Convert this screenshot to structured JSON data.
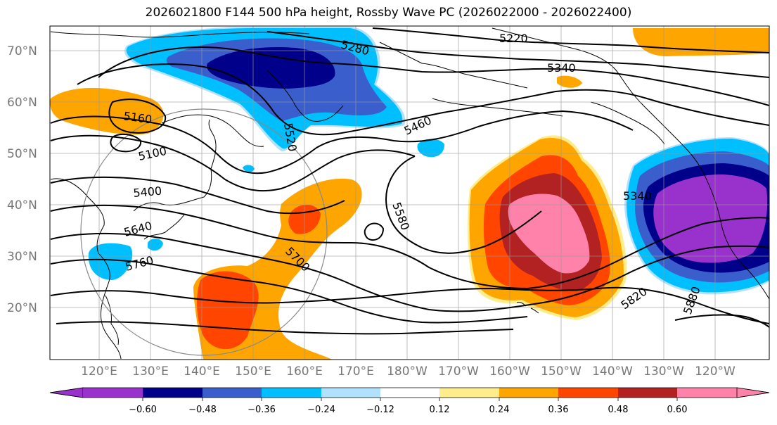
{
  "title": "2026021800 F144 500 hPa height, Rossby Wave PC (2026022000 - 2026022400)",
  "lat_labels": [
    "70°N",
    "60°N",
    "50°N",
    "40°N",
    "30°N",
    "20°N"
  ],
  "lon_labels": [
    "120°E",
    "130°E",
    "140°E",
    "150°E",
    "160°E",
    "170°E",
    "180°W",
    "170°W",
    "160°W",
    "150°W",
    "140°W",
    "130°W",
    "120°W"
  ],
  "contour_labels": [
    "5220",
    "5280",
    "5340",
    "5160",
    "5100",
    "5460",
    "5520",
    "5400",
    "5580",
    "5640",
    "5700",
    "5760",
    "5820",
    "5340",
    "5880"
  ],
  "colorbar": {
    "ticks": [
      "−0.60",
      "−0.48",
      "−0.36",
      "−0.24",
      "−0.12",
      "0.12",
      "0.24",
      "0.36",
      "0.48",
      "0.60"
    ],
    "colors": [
      "#9932cc",
      "#00008b",
      "#3a5fcd",
      "#00bfff",
      "#b0e2ff",
      "#ffffff",
      "#ffec8b",
      "#ffa500",
      "#ff4500",
      "#b22222",
      "#ff82ab"
    ]
  },
  "fill_colors": {
    "neg_strong": "#9932cc",
    "neg_dark": "#00008b",
    "neg_med": "#3a5fcd",
    "neg_light": "#00bfff",
    "neg_pale": "#b0e2ff",
    "pos_pale": "#ffec8b",
    "pos_light": "#ffa500",
    "pos_med": "#ff4500",
    "pos_dark": "#b22222",
    "pos_strong": "#ff82ab"
  }
}
